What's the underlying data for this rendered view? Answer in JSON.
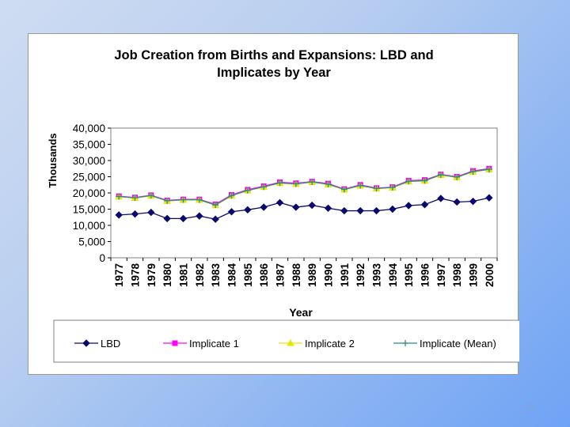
{
  "slide": {
    "number": "21"
  },
  "chart_data": {
    "type": "line",
    "title": "Job Creation from Births and Expansions: LBD and Implicates by Year",
    "title_lines": [
      "Job Creation from Births and Expansions: LBD and",
      "Implicates by Year"
    ],
    "xlabel": "Year",
    "ylabel": "Thousands",
    "categories": [
      "1977",
      "1978",
      "1979",
      "1980",
      "1981",
      "1982",
      "1983",
      "1984",
      "1985",
      "1986",
      "1987",
      "1988",
      "1989",
      "1990",
      "1991",
      "1992",
      "1993",
      "1994",
      "1995",
      "1996",
      "1997",
      "1998",
      "1999",
      "2000"
    ],
    "ylim": [
      0,
      40000
    ],
    "yticks": [
      0,
      5000,
      10000,
      15000,
      20000,
      25000,
      30000,
      35000,
      40000
    ],
    "ytick_labels": [
      "0",
      "5,000",
      "10,000",
      "15,000",
      "20,000",
      "25,000",
      "30,000",
      "35,000",
      "40,000"
    ],
    "grid": false,
    "legend_position": "bottom",
    "series": [
      {
        "name": "LBD",
        "color": "#0a0a6e",
        "marker": "diamond",
        "values": [
          13200,
          13500,
          14000,
          12100,
          12100,
          12900,
          11900,
          14200,
          14800,
          15600,
          17000,
          15600,
          16200,
          15300,
          14500,
          14500,
          14500,
          15000,
          16100,
          16400,
          18300,
          17200,
          17400,
          18500
        ]
      },
      {
        "name": "Implicate 1",
        "color": "#ff00ff",
        "marker": "square",
        "values": [
          19000,
          18600,
          19300,
          17700,
          18000,
          18000,
          16500,
          19400,
          21000,
          22100,
          23300,
          23000,
          23500,
          22900,
          21200,
          22500,
          21500,
          21800,
          23800,
          24000,
          25700,
          25000,
          26800,
          27500
        ]
      },
      {
        "name": "Implicate 2",
        "color": "#e6e600",
        "marker": "triangle",
        "values": [
          18800,
          18400,
          19100,
          17500,
          17800,
          17800,
          16200,
          19100,
          20700,
          21800,
          23000,
          22700,
          23300,
          22600,
          21000,
          22200,
          21300,
          21600,
          23500,
          23700,
          25500,
          24800,
          26500,
          27200
        ]
      },
      {
        "name": "Implicate (Mean)",
        "color": "#2e8b8b",
        "marker": "plus",
        "values": [
          18900,
          18500,
          19200,
          17600,
          17900,
          17900,
          16300,
          19200,
          20800,
          21900,
          23100,
          22800,
          23400,
          22700,
          21100,
          22300,
          21400,
          21700,
          23600,
          23800,
          25600,
          24900,
          26600,
          27300
        ]
      }
    ]
  }
}
